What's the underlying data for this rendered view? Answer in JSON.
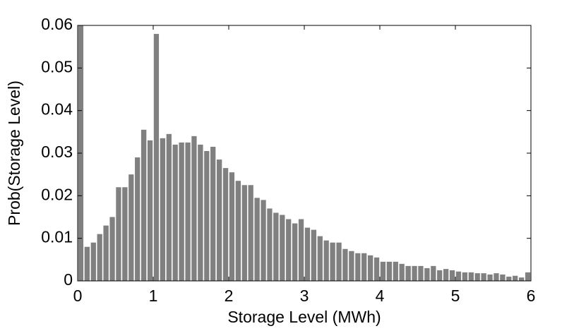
{
  "chart_data": {
    "type": "histogram",
    "xlabel": "Storage Level (MWh)",
    "ylabel": "Prob(Storage Level)",
    "color": "#808080",
    "bins": [
      0,
      0.083,
      0.167,
      0.25,
      0.333,
      0.417,
      0.5,
      0.583,
      0.667,
      0.75,
      0.833,
      0.917,
      1,
      1.083,
      1.167,
      1.25,
      1.333,
      1.417,
      1.5,
      1.583,
      1.667,
      1.75,
      1.833,
      1.917,
      2,
      2.083,
      2.167,
      2.25,
      2.333,
      2.417,
      2.5,
      2.583,
      2.667,
      2.75,
      2.833,
      2.917,
      3,
      3.083,
      3.167,
      3.25,
      3.333,
      3.417,
      3.5,
      3.583,
      3.667,
      3.75,
      3.833,
      3.917,
      4,
      4.083,
      4.167,
      4.25,
      4.333,
      4.417,
      4.5,
      4.583,
      4.667,
      4.75,
      4.833,
      4.917,
      5,
      5.083,
      5.167,
      5.25,
      5.333,
      5.417,
      5.5,
      5.583,
      5.667,
      5.75,
      5.833,
      5.917,
      6
    ],
    "values": [
      0.06,
      0.008,
      0.009,
      0.011,
      0.013,
      0.015,
      0.022,
      0.022,
      0.025,
      0.029,
      0.0355,
      0.033,
      0.058,
      0.0335,
      0.0345,
      0.032,
      0.0325,
      0.0325,
      0.034,
      0.032,
      0.0305,
      0.0315,
      0.0285,
      0.0265,
      0.0255,
      0.0235,
      0.0225,
      0.0225,
      0.0195,
      0.019,
      0.017,
      0.016,
      0.0155,
      0.0145,
      0.0135,
      0.0145,
      0.0125,
      0.012,
      0.0105,
      0.0095,
      0.009,
      0.009,
      0.0075,
      0.007,
      0.0065,
      0.0065,
      0.006,
      0.0055,
      0.0045,
      0.0045,
      0.0045,
      0.004,
      0.0035,
      0.0035,
      0.0035,
      0.003,
      0.0035,
      0.0025,
      0.0028,
      0.0025,
      0.0022,
      0.002,
      0.002,
      0.0018,
      0.0018,
      0.0015,
      0.0018,
      0.0015,
      0.001,
      0.0012,
      0.0008,
      0.002
    ],
    "xlim": [
      0,
      6
    ],
    "xticks": [
      0,
      1,
      2,
      3,
      4,
      5,
      6
    ],
    "ylim": [
      0,
      0.06
    ],
    "yticks": [
      0,
      0.01,
      0.02,
      0.03,
      0.04,
      0.05,
      0.06
    ]
  }
}
